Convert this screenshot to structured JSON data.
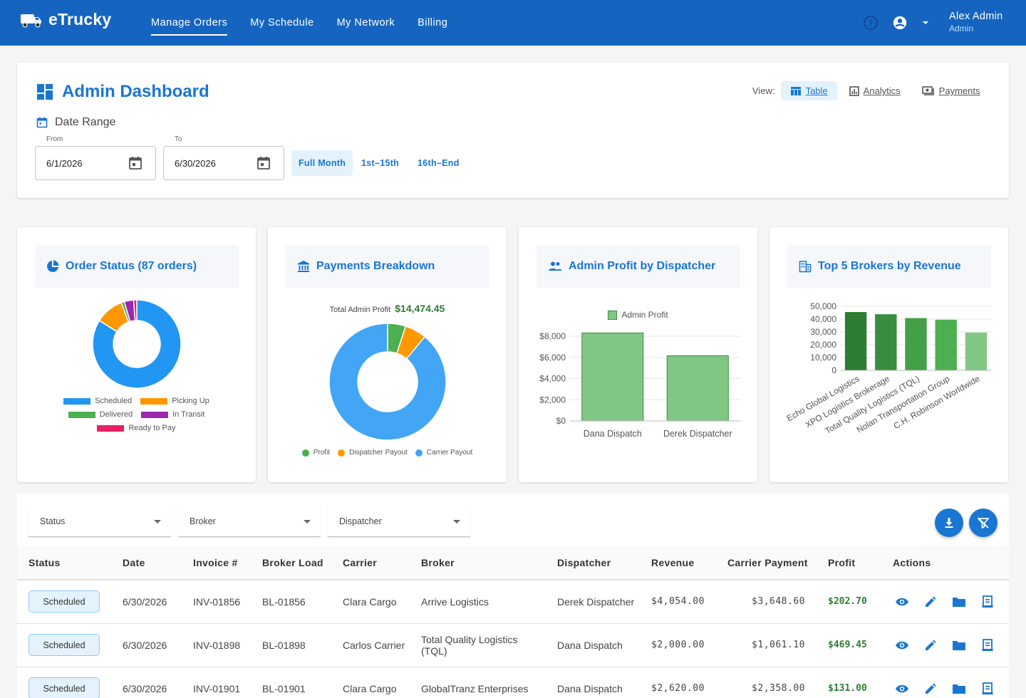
{
  "app": {
    "name": "eTrucky",
    "nav": [
      "Manage Orders",
      "My Schedule",
      "My Network",
      "Billing"
    ],
    "user": {
      "name": "Alex Admin",
      "role": "Admin"
    }
  },
  "dashboard": {
    "title": "Admin Dashboard",
    "view_label": "View:",
    "views": [
      "Table",
      "Analytics",
      "Payments"
    ],
    "date_range_label": "Date Range",
    "from_label": "From",
    "from_value": "6/1/2026",
    "to_label": "To",
    "to_value": "6/30/2026",
    "range_buttons": [
      "Full Month",
      "1st–15th",
      "16th–End"
    ]
  },
  "charts": {
    "order_status": {
      "title": "Order Status (87 orders)",
      "legend": [
        "Scheduled",
        "Picking Up",
        "Delivered",
        "In Transit",
        "Ready to Pay"
      ]
    },
    "payments": {
      "title": "Payments Breakdown",
      "total_label": "Total Admin Profit",
      "total_value": "$14,474.45",
      "legend": [
        "Profit",
        "Dispatcher Payout",
        "Carrier Payout"
      ]
    },
    "dispatcher": {
      "title": "Admin Profit by Dispatcher",
      "legend": "Admin Profit"
    },
    "brokers": {
      "title": "Top 5 Brokers by Revenue"
    }
  },
  "chart_data": [
    {
      "type": "pie",
      "title": "Order Status (87 orders)",
      "donut": true,
      "labels": [
        "Scheduled",
        "Picking Up",
        "Delivered",
        "In Transit",
        "Ready to Pay"
      ],
      "values": [
        73,
        9,
        1,
        3,
        1
      ],
      "colors": [
        "#2196f3",
        "#ff9800",
        "#4caf50",
        "#9c27b0",
        "#e91e63"
      ],
      "legend": "bottom"
    },
    {
      "type": "pie",
      "title": "Payments Breakdown",
      "donut": true,
      "labels": [
        "Profit",
        "Dispatcher Payout",
        "Carrier Payout"
      ],
      "values": [
        5,
        6,
        89
      ],
      "colors": [
        "#4caf50",
        "#ff9800",
        "#42a5f5"
      ],
      "legend": "bottom"
    },
    {
      "type": "bar",
      "title": "Admin Profit by Dispatcher",
      "categories": [
        "Dana Dispatch",
        "Derek Dispatcher"
      ],
      "series": [
        {
          "name": "Admin Profit",
          "values": [
            8300,
            6150
          ]
        }
      ],
      "ylim": [
        0,
        8000
      ],
      "yticks": [
        "$0",
        "$2,000",
        "$4,000",
        "$6,000",
        "$8,000"
      ],
      "grid": true,
      "legend": "top"
    },
    {
      "type": "bar",
      "title": "Top 5 Brokers by Revenue",
      "categories": [
        "Echo Global Logistics",
        "XPO Logistics Brokerage",
        "Total Quality Logistics (TQL)",
        "Nolan Transportation Group",
        "C.H. Robinson Worldwide"
      ],
      "values": [
        45500,
        43800,
        40800,
        39500,
        29500
      ],
      "colors": [
        "#2e7d32",
        "#388e3c",
        "#43a047",
        "#4caf50",
        "#81c784"
      ],
      "ylim": [
        0,
        50000
      ],
      "yticks": [
        "0",
        "10,000",
        "20,000",
        "30,000",
        "40,000",
        "50,000"
      ],
      "grid": true
    }
  ],
  "filters": [
    "Status",
    "Broker",
    "Dispatcher"
  ],
  "table": {
    "columns": [
      "Status",
      "Date",
      "Invoice #",
      "Broker Load",
      "Carrier",
      "Broker",
      "Dispatcher",
      "Revenue",
      "Carrier Payment",
      "Profit",
      "Actions"
    ],
    "rows": [
      {
        "status": "Scheduled",
        "date": "6/30/2026",
        "invoice": "INV-01856",
        "broker_load": "BL-01856",
        "carrier": "Clara Cargo",
        "broker": "Arrive Logistics",
        "dispatcher": "Derek Dispatcher",
        "revenue": "$4,054.00",
        "carrier_payment": "$3,648.60",
        "profit": "$202.70"
      },
      {
        "status": "Scheduled",
        "date": "6/30/2026",
        "invoice": "INV-01898",
        "broker_load": "BL-01898",
        "carrier": "Carlos Carrier",
        "broker": "Total Quality Logistics (TQL)",
        "dispatcher": "Dana Dispatch",
        "revenue": "$2,000.00",
        "carrier_payment": "$1,061.10",
        "profit": "$469.45"
      },
      {
        "status": "Scheduled",
        "date": "6/30/2026",
        "invoice": "INV-01901",
        "broker_load": "BL-01901",
        "carrier": "Clara Cargo",
        "broker": "GlobalTranz Enterprises",
        "dispatcher": "Dana Dispatch",
        "revenue": "$2,620.00",
        "carrier_payment": "$2,358.00",
        "profit": "$131.00"
      }
    ]
  }
}
